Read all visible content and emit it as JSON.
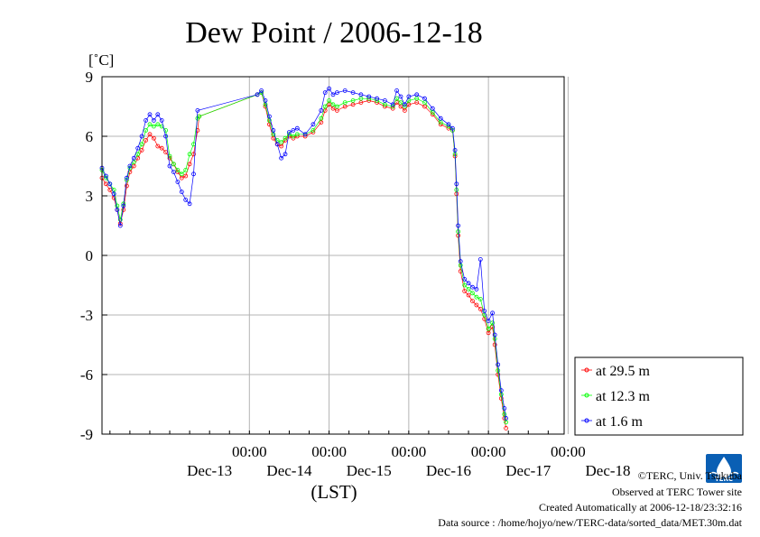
{
  "chart_data": {
    "type": "line",
    "title": "Dew Point / 2006-12-18",
    "ylabel": "[˚C]",
    "xlabel": "(LST)",
    "ylim": [
      -9,
      9
    ],
    "yticks": [
      "9",
      "6",
      "3",
      "0",
      "-3",
      "-6",
      "-9"
    ],
    "xlim": [
      -0.85,
      4.95
    ],
    "xticks_time": [
      "00:00",
      "00:00",
      "00:00",
      "00:00",
      "00:00"
    ],
    "xtick_positions": [
      1,
      2,
      3,
      4,
      5
    ],
    "xlabels_day": [
      "Dec-13",
      "Dec-14",
      "Dec-15",
      "Dec-16",
      "Dec-17",
      "Dec-18"
    ],
    "xlabel_day_positions": [
      0.5,
      1.5,
      2.5,
      3.5,
      4.5,
      5.5
    ],
    "grid": true,
    "legend_position": "right",
    "series": [
      {
        "name": "at 29.5 m",
        "color": "#ff0000",
        "points": [
          [
            -0.85,
            3.9
          ],
          [
            -0.8,
            3.6
          ],
          [
            -0.75,
            3.3
          ],
          [
            -0.7,
            2.9
          ],
          [
            -0.66,
            2.3
          ],
          [
            -0.62,
            1.6
          ],
          [
            -0.58,
            2.3
          ],
          [
            -0.54,
            3.5
          ],
          [
            -0.5,
            4.2
          ],
          [
            -0.45,
            4.5
          ],
          [
            -0.4,
            4.9
          ],
          [
            -0.35,
            5.3
          ],
          [
            -0.3,
            5.8
          ],
          [
            -0.25,
            6.1
          ],
          [
            -0.2,
            5.9
          ],
          [
            -0.15,
            5.5
          ],
          [
            -0.1,
            5.4
          ],
          [
            -0.05,
            5.2
          ],
          [
            0.0,
            4.9
          ],
          [
            0.05,
            4.6
          ],
          [
            0.1,
            4.2
          ],
          [
            0.15,
            3.9
          ],
          [
            0.2,
            4.0
          ],
          [
            0.25,
            4.6
          ],
          [
            0.3,
            5.1
          ],
          [
            0.35,
            6.3
          ],
          [
            0.37,
            7.0
          ],
          [
            1.1,
            8.1
          ],
          [
            1.15,
            8.2
          ],
          [
            1.2,
            7.5
          ],
          [
            1.25,
            6.6
          ],
          [
            1.3,
            5.9
          ],
          [
            1.35,
            5.6
          ],
          [
            1.4,
            5.5
          ],
          [
            1.45,
            5.8
          ],
          [
            1.5,
            6.0
          ],
          [
            1.55,
            5.9
          ],
          [
            1.6,
            6.0
          ],
          [
            1.7,
            6.0
          ],
          [
            1.8,
            6.2
          ],
          [
            1.9,
            6.7
          ],
          [
            1.95,
            7.3
          ],
          [
            2.0,
            7.6
          ],
          [
            2.05,
            7.4
          ],
          [
            2.1,
            7.3
          ],
          [
            2.2,
            7.5
          ],
          [
            2.3,
            7.6
          ],
          [
            2.4,
            7.7
          ],
          [
            2.5,
            7.8
          ],
          [
            2.6,
            7.7
          ],
          [
            2.7,
            7.5
          ],
          [
            2.8,
            7.4
          ],
          [
            2.85,
            7.7
          ],
          [
            2.9,
            7.5
          ],
          [
            2.95,
            7.3
          ],
          [
            3.0,
            7.6
          ],
          [
            3.1,
            7.7
          ],
          [
            3.2,
            7.5
          ],
          [
            3.3,
            7.1
          ],
          [
            3.4,
            6.6
          ],
          [
            3.5,
            6.4
          ],
          [
            3.55,
            6.3
          ],
          [
            3.58,
            5.0
          ],
          [
            3.6,
            3.1
          ],
          [
            3.62,
            1.0
          ],
          [
            3.65,
            -0.8
          ],
          [
            3.7,
            -1.8
          ],
          [
            3.75,
            -2.0
          ],
          [
            3.8,
            -2.3
          ],
          [
            3.85,
            -2.5
          ],
          [
            3.9,
            -2.7
          ],
          [
            3.95,
            -3.2
          ],
          [
            4.0,
            -3.9
          ],
          [
            4.05,
            -3.6
          ],
          [
            4.08,
            -4.5
          ],
          [
            4.12,
            -6.0
          ],
          [
            4.16,
            -7.2
          ],
          [
            4.2,
            -8.2
          ],
          [
            4.22,
            -8.7
          ]
        ]
      },
      {
        "name": "at 12.3 m",
        "color": "#00ff00",
        "points": [
          [
            -0.85,
            4.3
          ],
          [
            -0.8,
            3.9
          ],
          [
            -0.75,
            3.6
          ],
          [
            -0.7,
            3.3
          ],
          [
            -0.66,
            2.5
          ],
          [
            -0.62,
            1.8
          ],
          [
            -0.58,
            2.6
          ],
          [
            -0.54,
            3.8
          ],
          [
            -0.5,
            4.4
          ],
          [
            -0.45,
            4.7
          ],
          [
            -0.4,
            5.1
          ],
          [
            -0.35,
            5.6
          ],
          [
            -0.3,
            6.3
          ],
          [
            -0.25,
            6.6
          ],
          [
            -0.2,
            6.5
          ],
          [
            -0.15,
            6.6
          ],
          [
            -0.1,
            6.5
          ],
          [
            -0.05,
            6.3
          ],
          [
            0.0,
            5.0
          ],
          [
            0.05,
            4.6
          ],
          [
            0.1,
            4.3
          ],
          [
            0.15,
            4.1
          ],
          [
            0.2,
            4.3
          ],
          [
            0.25,
            5.1
          ],
          [
            0.3,
            5.6
          ],
          [
            0.35,
            6.9
          ],
          [
            0.37,
            7.0
          ],
          [
            1.1,
            8.1
          ],
          [
            1.15,
            8.2
          ],
          [
            1.2,
            7.6
          ],
          [
            1.25,
            6.8
          ],
          [
            1.3,
            6.1
          ],
          [
            1.35,
            5.8
          ],
          [
            1.4,
            5.7
          ],
          [
            1.45,
            5.9
          ],
          [
            1.5,
            6.1
          ],
          [
            1.55,
            6.0
          ],
          [
            1.6,
            6.1
          ],
          [
            1.7,
            6.1
          ],
          [
            1.8,
            6.3
          ],
          [
            1.9,
            6.9
          ],
          [
            1.95,
            7.5
          ],
          [
            2.0,
            7.8
          ],
          [
            2.05,
            7.6
          ],
          [
            2.1,
            7.5
          ],
          [
            2.2,
            7.7
          ],
          [
            2.3,
            7.8
          ],
          [
            2.4,
            7.9
          ],
          [
            2.5,
            7.9
          ],
          [
            2.6,
            7.8
          ],
          [
            2.7,
            7.6
          ],
          [
            2.8,
            7.5
          ],
          [
            2.85,
            7.9
          ],
          [
            2.9,
            7.7
          ],
          [
            2.95,
            7.5
          ],
          [
            3.0,
            7.8
          ],
          [
            3.1,
            7.9
          ],
          [
            3.2,
            7.7
          ],
          [
            3.3,
            7.2
          ],
          [
            3.4,
            6.7
          ],
          [
            3.5,
            6.5
          ],
          [
            3.55,
            6.3
          ],
          [
            3.58,
            5.1
          ],
          [
            3.6,
            3.3
          ],
          [
            3.62,
            1.2
          ],
          [
            3.65,
            -0.5
          ],
          [
            3.7,
            -1.5
          ],
          [
            3.75,
            -1.7
          ],
          [
            3.8,
            -1.9
          ],
          [
            3.85,
            -2.1
          ],
          [
            3.9,
            -2.2
          ],
          [
            3.95,
            -3.0
          ],
          [
            4.0,
            -3.7
          ],
          [
            4.05,
            -3.4
          ],
          [
            4.08,
            -4.2
          ],
          [
            4.12,
            -5.8
          ],
          [
            4.16,
            -7.0
          ],
          [
            4.2,
            -8.0
          ],
          [
            4.22,
            -8.4
          ]
        ]
      },
      {
        "name": "at 1.6 m",
        "color": "#0000ff",
        "points": [
          [
            -0.85,
            4.4
          ],
          [
            -0.8,
            4.0
          ],
          [
            -0.75,
            3.6
          ],
          [
            -0.7,
            3.1
          ],
          [
            -0.66,
            2.3
          ],
          [
            -0.62,
            1.5
          ],
          [
            -0.58,
            2.5
          ],
          [
            -0.54,
            3.9
          ],
          [
            -0.5,
            4.5
          ],
          [
            -0.45,
            4.9
          ],
          [
            -0.4,
            5.4
          ],
          [
            -0.35,
            6.0
          ],
          [
            -0.3,
            6.8
          ],
          [
            -0.25,
            7.1
          ],
          [
            -0.2,
            6.8
          ],
          [
            -0.15,
            7.1
          ],
          [
            -0.1,
            6.8
          ],
          [
            -0.05,
            6.0
          ],
          [
            0.0,
            4.5
          ],
          [
            0.05,
            4.2
          ],
          [
            0.1,
            3.7
          ],
          [
            0.15,
            3.2
          ],
          [
            0.2,
            2.8
          ],
          [
            0.25,
            2.6
          ],
          [
            0.3,
            4.1
          ],
          [
            0.35,
            7.3
          ],
          [
            1.1,
            8.1
          ],
          [
            1.15,
            8.3
          ],
          [
            1.2,
            7.8
          ],
          [
            1.25,
            7.0
          ],
          [
            1.3,
            6.3
          ],
          [
            1.35,
            5.6
          ],
          [
            1.4,
            4.9
          ],
          [
            1.45,
            5.1
          ],
          [
            1.5,
            6.2
          ],
          [
            1.55,
            6.3
          ],
          [
            1.6,
            6.4
          ],
          [
            1.7,
            6.1
          ],
          [
            1.8,
            6.6
          ],
          [
            1.9,
            7.3
          ],
          [
            1.95,
            8.2
          ],
          [
            2.0,
            8.4
          ],
          [
            2.05,
            8.1
          ],
          [
            2.1,
            8.2
          ],
          [
            2.2,
            8.3
          ],
          [
            2.3,
            8.2
          ],
          [
            2.4,
            8.1
          ],
          [
            2.5,
            8.0
          ],
          [
            2.6,
            7.9
          ],
          [
            2.7,
            7.8
          ],
          [
            2.8,
            7.6
          ],
          [
            2.85,
            8.3
          ],
          [
            2.9,
            8.0
          ],
          [
            2.95,
            7.6
          ],
          [
            3.0,
            8.0
          ],
          [
            3.1,
            8.1
          ],
          [
            3.2,
            7.9
          ],
          [
            3.3,
            7.4
          ],
          [
            3.4,
            6.9
          ],
          [
            3.5,
            6.6
          ],
          [
            3.55,
            6.4
          ],
          [
            3.58,
            5.3
          ],
          [
            3.6,
            3.6
          ],
          [
            3.62,
            1.5
          ],
          [
            3.65,
            -0.3
          ],
          [
            3.7,
            -1.2
          ],
          [
            3.75,
            -1.4
          ],
          [
            3.8,
            -1.6
          ],
          [
            3.85,
            -1.7
          ],
          [
            3.9,
            -0.2
          ],
          [
            3.95,
            -2.8
          ],
          [
            4.0,
            -3.3
          ],
          [
            4.05,
            -2.9
          ],
          [
            4.08,
            -4.0
          ],
          [
            4.12,
            -5.5
          ],
          [
            4.16,
            -6.8
          ],
          [
            4.2,
            -7.7
          ],
          [
            4.22,
            -8.2
          ]
        ]
      }
    ]
  },
  "credits": {
    "copyright": "©TERC, Univ. Tsukuba",
    "site": "Observed at TERC Tower site",
    "created": "Created Automatically at 2006-12-18/23:32:16",
    "source": "Data source : /home/hojyo/new/TERC-data/sorted_data/MET.30m.dat"
  },
  "logo": {
    "text": "TERC",
    "color": "#0a5fb4"
  }
}
